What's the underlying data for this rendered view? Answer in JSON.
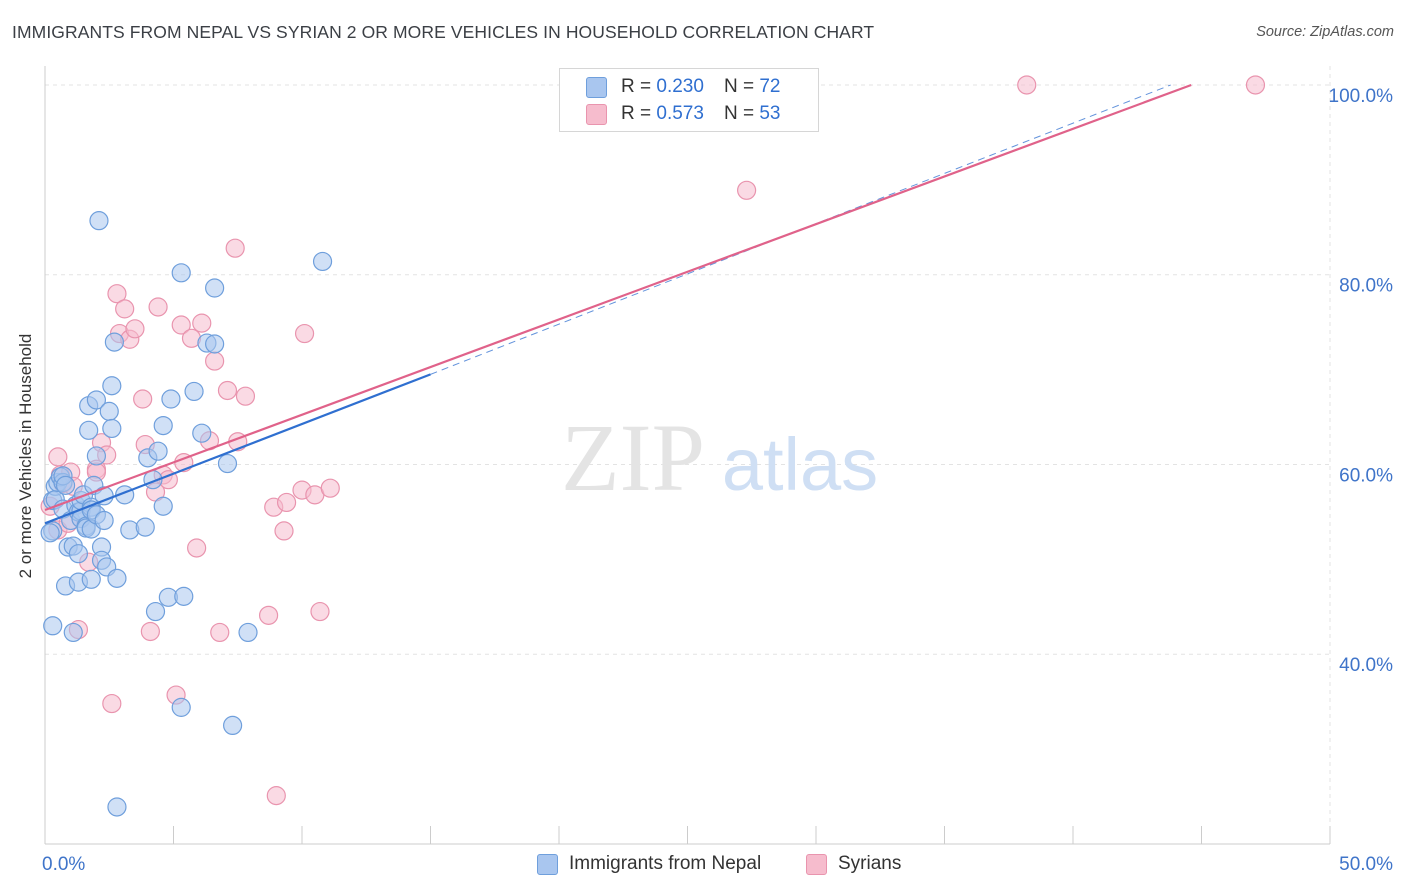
{
  "title": "IMMIGRANTS FROM NEPAL VS SYRIAN 2 OR MORE VEHICLES IN HOUSEHOLD CORRELATION CHART",
  "source": "Source: ZipAtlas.com",
  "watermark": {
    "zip": "ZIP",
    "atlas": "atlas"
  },
  "legend": {
    "nepal": {
      "r_label": "R =",
      "r_value": "0.230",
      "n_label": "N =",
      "n_value": "72"
    },
    "syrians": {
      "r_label": "R =",
      "r_value": "0.573",
      "n_label": "N =",
      "n_value": "53"
    }
  },
  "bottom_legend": {
    "nepal": "Immigrants from Nepal",
    "syrians": "Syrians"
  },
  "colors": {
    "nepal_fill": "#a9c6ef",
    "nepal_stroke": "#6f9fdc",
    "nepal_line": "#2f6fd0",
    "syrians_fill": "#f6bccd",
    "syrians_stroke": "#e994ae",
    "syrians_line": "#e0628a",
    "axis_text": "#3f74c9",
    "grid": "#e3e3e3"
  },
  "chart_data": {
    "type": "scatter",
    "title": "IMMIGRANTS FROM NEPAL VS SYRIAN 2 OR MORE VEHICLES IN HOUSEHOLD CORRELATION CHART",
    "xlabel": "",
    "ylabel": "2 or more Vehicles in Household",
    "xlim": [
      0,
      50
    ],
    "ylim": [
      20,
      102
    ],
    "x_tick_labels": [
      {
        "value": 0,
        "label": "0.0%"
      },
      {
        "value": 50,
        "label": "50.0%"
      }
    ],
    "y_ticks": [
      {
        "value": 40,
        "label": "40.0%"
      },
      {
        "value": 60,
        "label": "60.0%"
      },
      {
        "value": 80,
        "label": "80.0%"
      },
      {
        "value": 100,
        "label": "100.0%"
      }
    ],
    "x_minor_ticks": [
      5,
      10,
      15,
      20,
      25,
      30,
      35,
      40,
      45,
      50
    ],
    "series": [
      {
        "name": "Immigrants from Nepal",
        "points": [
          [
            0.3,
            43.0
          ],
          [
            0.3,
            53.0
          ],
          [
            0.3,
            56.2
          ],
          [
            0.4,
            57.7
          ],
          [
            0.4,
            56.3
          ],
          [
            0.5,
            58.1
          ],
          [
            0.6,
            58.7
          ],
          [
            0.7,
            58.1
          ],
          [
            0.7,
            55.3
          ],
          [
            0.7,
            58.8
          ],
          [
            0.8,
            47.2
          ],
          [
            0.8,
            57.8
          ],
          [
            0.9,
            51.3
          ],
          [
            1.0,
            54.1
          ],
          [
            1.1,
            42.3
          ],
          [
            1.1,
            51.4
          ],
          [
            1.2,
            55.7
          ],
          [
            1.3,
            55.0
          ],
          [
            1.3,
            47.6
          ],
          [
            1.3,
            50.6
          ],
          [
            1.4,
            55.1
          ],
          [
            1.4,
            54.3
          ],
          [
            1.4,
            56.2
          ],
          [
            1.5,
            56.8
          ],
          [
            1.6,
            53.5
          ],
          [
            1.6,
            53.3
          ],
          [
            1.7,
            63.6
          ],
          [
            1.7,
            66.2
          ],
          [
            1.8,
            47.9
          ],
          [
            1.8,
            53.2
          ],
          [
            1.8,
            55.5
          ],
          [
            1.8,
            55.2
          ],
          [
            1.9,
            57.8
          ],
          [
            2.0,
            54.7
          ],
          [
            2.0,
            60.9
          ],
          [
            2.0,
            66.8
          ],
          [
            2.1,
            85.7
          ],
          [
            2.2,
            51.3
          ],
          [
            2.2,
            49.9
          ],
          [
            2.3,
            54.1
          ],
          [
            2.3,
            56.7
          ],
          [
            2.4,
            49.2
          ],
          [
            2.5,
            65.6
          ],
          [
            2.6,
            63.8
          ],
          [
            2.6,
            68.3
          ],
          [
            2.7,
            72.9
          ],
          [
            2.8,
            48.0
          ],
          [
            2.8,
            23.9
          ],
          [
            3.1,
            56.8
          ],
          [
            3.3,
            53.1
          ],
          [
            3.9,
            53.4
          ],
          [
            4.0,
            60.7
          ],
          [
            4.2,
            58.4
          ],
          [
            4.3,
            44.5
          ],
          [
            4.4,
            61.4
          ],
          [
            4.6,
            64.1
          ],
          [
            4.6,
            55.6
          ],
          [
            4.8,
            46.0
          ],
          [
            4.9,
            66.9
          ],
          [
            5.3,
            80.2
          ],
          [
            5.3,
            34.4
          ],
          [
            5.4,
            46.1
          ],
          [
            5.8,
            67.7
          ],
          [
            6.1,
            63.3
          ],
          [
            6.3,
            72.8
          ],
          [
            6.6,
            72.7
          ],
          [
            6.6,
            78.6
          ],
          [
            7.1,
            60.1
          ],
          [
            7.3,
            32.5
          ],
          [
            7.9,
            42.3
          ],
          [
            10.8,
            81.4
          ],
          [
            0.2,
            52.8
          ]
        ]
      },
      {
        "name": "Syrians",
        "points": [
          [
            0.2,
            55.6
          ],
          [
            0.5,
            53.1
          ],
          [
            0.5,
            60.8
          ],
          [
            0.6,
            58.9
          ],
          [
            0.7,
            58.0
          ],
          [
            0.9,
            53.8
          ],
          [
            1.0,
            59.2
          ],
          [
            1.1,
            57.7
          ],
          [
            1.3,
            42.6
          ],
          [
            1.7,
            49.7
          ],
          [
            2.0,
            59.5
          ],
          [
            2.0,
            59.2
          ],
          [
            2.2,
            62.3
          ],
          [
            2.4,
            61.0
          ],
          [
            2.6,
            34.8
          ],
          [
            2.8,
            78.0
          ],
          [
            2.9,
            73.8
          ],
          [
            3.1,
            76.4
          ],
          [
            3.3,
            73.2
          ],
          [
            3.5,
            74.3
          ],
          [
            3.8,
            66.9
          ],
          [
            3.9,
            62.1
          ],
          [
            4.1,
            42.4
          ],
          [
            4.3,
            57.1
          ],
          [
            4.4,
            76.6
          ],
          [
            4.6,
            58.9
          ],
          [
            4.8,
            58.4
          ],
          [
            5.1,
            35.7
          ],
          [
            5.3,
            74.7
          ],
          [
            5.4,
            60.2
          ],
          [
            5.7,
            73.3
          ],
          [
            5.9,
            51.2
          ],
          [
            6.1,
            74.9
          ],
          [
            6.4,
            62.5
          ],
          [
            6.6,
            70.9
          ],
          [
            6.8,
            42.3
          ],
          [
            7.1,
            67.8
          ],
          [
            7.4,
            82.8
          ],
          [
            7.5,
            62.4
          ],
          [
            7.8,
            67.2
          ],
          [
            8.7,
            44.1
          ],
          [
            8.9,
            55.5
          ],
          [
            9.0,
            25.1
          ],
          [
            9.3,
            53.0
          ],
          [
            9.4,
            56.0
          ],
          [
            10.0,
            57.3
          ],
          [
            10.1,
            73.8
          ],
          [
            10.5,
            56.8
          ],
          [
            10.7,
            44.5
          ],
          [
            11.1,
            57.5
          ],
          [
            27.3,
            88.9
          ],
          [
            38.2,
            100.0
          ],
          [
            47.1,
            100.0
          ]
        ]
      }
    ],
    "trendlines": [
      {
        "series": "Immigrants from Nepal",
        "solid": [
          [
            0.0,
            53.8
          ],
          [
            15.0,
            69.5
          ]
        ],
        "dashed": [
          [
            15.0,
            69.5
          ],
          [
            43.8,
            100.0
          ]
        ]
      },
      {
        "series": "Syrians",
        "solid": [
          [
            0.0,
            55.2
          ],
          [
            44.6,
            100.0
          ]
        ]
      }
    ]
  }
}
